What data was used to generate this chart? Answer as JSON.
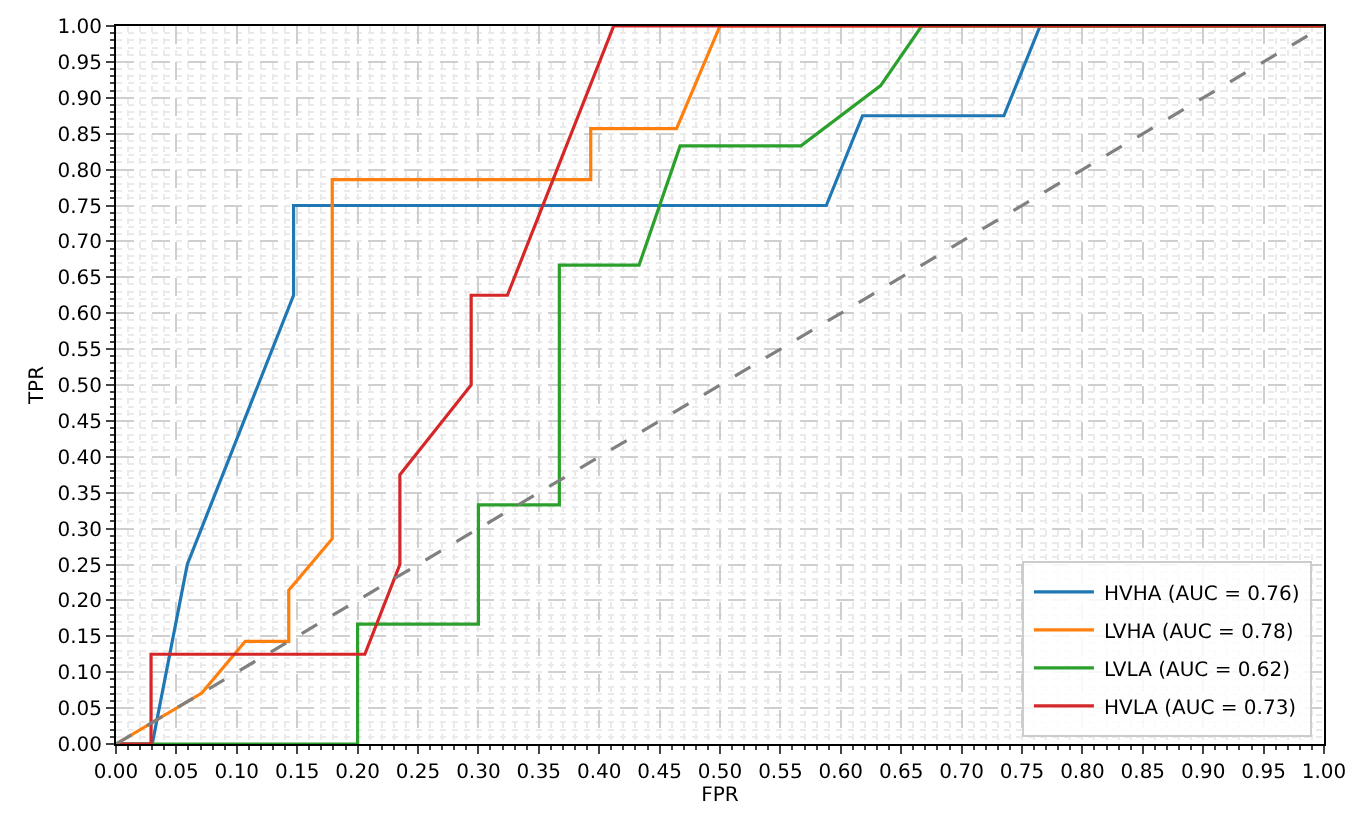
{
  "chart_data": {
    "type": "line",
    "xlabel": "FPR",
    "ylabel": "TPR",
    "xlim": [
      0,
      1
    ],
    "ylim": [
      0,
      1
    ],
    "xticks": [
      {
        "value": 0,
        "label": "0.00"
      },
      {
        "value": 0.05,
        "label": "0.05"
      },
      {
        "value": 0.1,
        "label": "0.10"
      },
      {
        "value": 0.15,
        "label": "0.15"
      },
      {
        "value": 0.2,
        "label": "0.20"
      },
      {
        "value": 0.25,
        "label": "0.25"
      },
      {
        "value": 0.3,
        "label": "0.30"
      },
      {
        "value": 0.35,
        "label": "0.35"
      },
      {
        "value": 0.4,
        "label": "0.40"
      },
      {
        "value": 0.45,
        "label": "0.45"
      },
      {
        "value": 0.5,
        "label": "0.50"
      },
      {
        "value": 0.55,
        "label": "0.55"
      },
      {
        "value": 0.6,
        "label": "0.60"
      },
      {
        "value": 0.65,
        "label": "0.65"
      },
      {
        "value": 0.7,
        "label": "0.70"
      },
      {
        "value": 0.75,
        "label": "0.75"
      },
      {
        "value": 0.8,
        "label": "0.80"
      },
      {
        "value": 0.85,
        "label": "0.85"
      },
      {
        "value": 0.9,
        "label": "0.90"
      },
      {
        "value": 0.95,
        "label": "0.95"
      },
      {
        "value": 1,
        "label": "1.00"
      }
    ],
    "yticks": [
      {
        "value": 0,
        "label": "0.00"
      },
      {
        "value": 0.05,
        "label": "0.05"
      },
      {
        "value": 0.1,
        "label": "0.10"
      },
      {
        "value": 0.15,
        "label": "0.15"
      },
      {
        "value": 0.2,
        "label": "0.20"
      },
      {
        "value": 0.25,
        "label": "0.25"
      },
      {
        "value": 0.3,
        "label": "0.30"
      },
      {
        "value": 0.35,
        "label": "0.35"
      },
      {
        "value": 0.4,
        "label": "0.40"
      },
      {
        "value": 0.45,
        "label": "0.45"
      },
      {
        "value": 0.5,
        "label": "0.50"
      },
      {
        "value": 0.55,
        "label": "0.55"
      },
      {
        "value": 0.6,
        "label": "0.60"
      },
      {
        "value": 0.65,
        "label": "0.65"
      },
      {
        "value": 0.7,
        "label": "0.70"
      },
      {
        "value": 0.75,
        "label": "0.75"
      },
      {
        "value": 0.8,
        "label": "0.80"
      },
      {
        "value": 0.85,
        "label": "0.85"
      },
      {
        "value": 0.9,
        "label": "0.90"
      },
      {
        "value": 0.95,
        "label": "0.95"
      },
      {
        "value": 1,
        "label": "1.00"
      }
    ],
    "grid": true,
    "legend": "bottom right",
    "marker": "none",
    "series": [
      {
        "name": "HVHA (AUC = 0.76)",
        "color": "#1f77b4",
        "x": [
          0,
          0.03,
          0.059,
          0.147,
          0.147,
          0.588,
          0.618,
          0.735,
          0.765,
          1
        ],
        "values": [
          0,
          0,
          0.25,
          0.625,
          0.75,
          0.75,
          0.875,
          0.875,
          1,
          1
        ]
      },
      {
        "name": "LVHA (AUC = 0.78)",
        "color": "#ff7f0e",
        "x": [
          0,
          0.071,
          0.107,
          0.143,
          0.143,
          0.179,
          0.179,
          0.393,
          0.393,
          0.464,
          0.5,
          1
        ],
        "values": [
          0,
          0.071,
          0.143,
          0.143,
          0.214,
          0.286,
          0.786,
          0.786,
          0.857,
          0.857,
          1,
          1
        ]
      },
      {
        "name": "LVLA (AUC = 0.62)",
        "color": "#2ca02c",
        "x": [
          0,
          0.2,
          0.2,
          0.3,
          0.3,
          0.367,
          0.367,
          0.433,
          0.467,
          0.567,
          0.633,
          0.667,
          1
        ],
        "values": [
          0,
          0,
          0.167,
          0.167,
          0.333,
          0.333,
          0.667,
          0.667,
          0.833,
          0.833,
          0.917,
          1,
          1
        ]
      },
      {
        "name": "HVLA (AUC = 0.73)",
        "color": "#d62728",
        "x": [
          0,
          0.029,
          0.029,
          0.206,
          0.235,
          0.235,
          0.294,
          0.294,
          0.324,
          0.412,
          1
        ],
        "values": [
          0,
          0,
          0.125,
          0.125,
          0.25,
          0.375,
          0.5,
          0.625,
          0.625,
          1,
          1
        ]
      },
      {
        "color": "#808080",
        "line_style": "dashed",
        "x": [
          0,
          1
        ],
        "values": [
          0,
          1
        ]
      }
    ]
  }
}
